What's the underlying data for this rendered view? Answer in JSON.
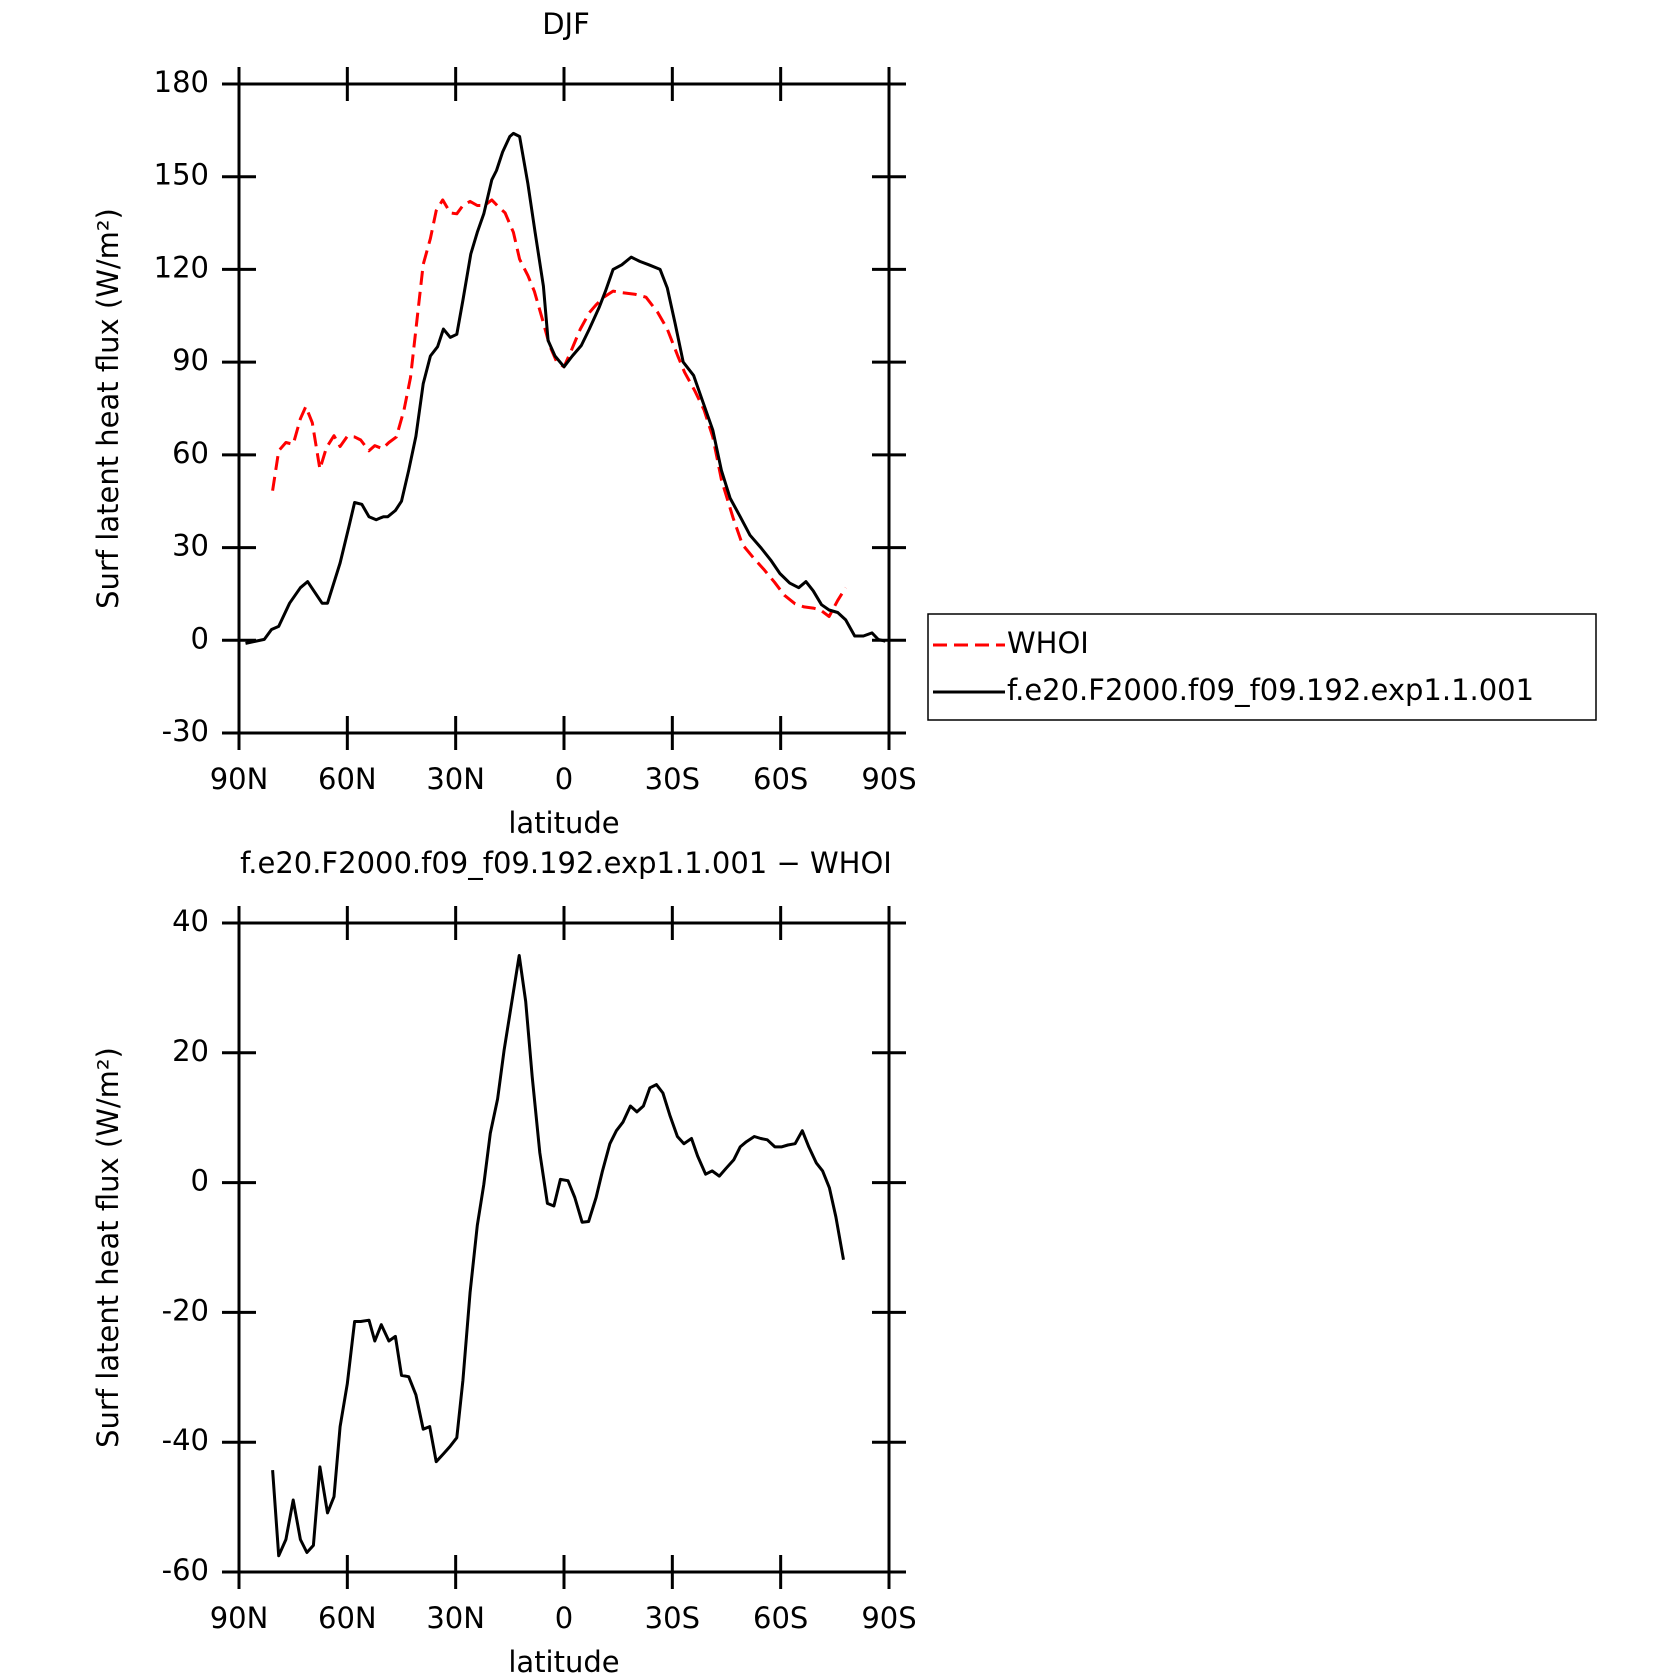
{
  "chart_data": [
    {
      "type": "line",
      "title": "DJF",
      "xlabel": "latitude",
      "ylabel": "Surf latent heat flux (W/m²)",
      "xlim": [
        90,
        -90
      ],
      "xticks": [
        {
          "value": 90,
          "label": "90N"
        },
        {
          "value": 60,
          "label": "60N"
        },
        {
          "value": 30,
          "label": "30N"
        },
        0,
        {
          "value": -30,
          "label": "30S"
        },
        {
          "value": -60,
          "label": "60S"
        },
        {
          "value": -90,
          "label": "90S"
        }
      ],
      "ylim": [
        -30,
        180
      ],
      "yticks": [
        -30,
        0,
        30,
        60,
        90,
        120,
        150,
        180
      ],
      "legend": "right",
      "series": [
        {
          "name": "WHOI",
          "color": "#ff0000",
          "linestyle": "dashed",
          "x": [
            80.7,
            79,
            77,
            75,
            73,
            71.5,
            69.7,
            67.6,
            65.8,
            63.7,
            62,
            60,
            58,
            56.3,
            54,
            52.4,
            50.3,
            48.5,
            46.4,
            44.3,
            42.5,
            39,
            37,
            35.4,
            33.6,
            31.5,
            29.7,
            28,
            26,
            24,
            22,
            20,
            18.5,
            16.3,
            14,
            12.3,
            10,
            8.2,
            6,
            4,
            2,
            0,
            -2,
            -4.5,
            -7,
            -9,
            -11,
            -13.6,
            -16,
            -19.6,
            -22.7,
            -26,
            -28.6,
            -31.5,
            -33.4,
            -36.2,
            -38.8,
            -41.2,
            -43.6,
            -46.8,
            -49.4,
            -52.6,
            -55.3,
            -58.3,
            -61,
            -64,
            -66.5,
            -69,
            -71,
            -73.4,
            -75.8,
            -78
          ],
          "values": [
            48.4,
            61.3,
            64,
            63.4,
            71.7,
            75.6,
            70.4,
            55.4,
            62.3,
            66.2,
            62.7,
            66,
            65.8,
            64.8,
            61.3,
            63,
            62,
            64,
            65.8,
            74.5,
            85,
            121.6,
            130,
            139,
            142.5,
            138.3,
            138,
            140.7,
            142,
            140.7,
            140.7,
            142.5,
            140.7,
            138.3,
            132,
            123.3,
            118,
            112.9,
            104,
            95.4,
            90,
            88.5,
            93.7,
            100.7,
            106,
            108.7,
            111,
            113,
            112.5,
            112,
            111,
            106,
            100.7,
            92,
            86.7,
            80.8,
            74.5,
            65.8,
            52,
            39.7,
            31,
            26.5,
            23,
            18.8,
            14.6,
            11.8,
            10.8,
            10.4,
            9.8,
            7.7,
            12.9,
            17
          ]
        },
        {
          "name": "f.e20.F2000.f09_f09.192.exp1.1.001",
          "color": "#000000",
          "linestyle": "solid",
          "x": [
            88.2,
            83,
            81,
            79,
            76,
            73,
            71,
            67,
            65.5,
            62,
            59.5,
            58,
            56,
            54,
            52,
            50,
            48.8,
            46.7,
            45,
            43,
            41,
            39,
            37,
            35,
            33.4,
            31.5,
            29.7,
            28,
            25.8,
            24,
            22.2,
            20,
            18.7,
            17,
            15,
            14,
            12.3,
            10,
            8,
            5.7,
            4.4,
            2.5,
            0,
            -2.3,
            -4.8,
            -7,
            -9.7,
            -11.5,
            -13.6,
            -16,
            -18.6,
            -21,
            -23.5,
            -26.6,
            -28.6,
            -30.8,
            -33,
            -35.9,
            -38.5,
            -41.2,
            -43.6,
            -46,
            -48.8,
            -51.5,
            -54.5,
            -57.2,
            -59.8,
            -62.5,
            -65,
            -67,
            -69,
            -71.3,
            -73.4,
            -75.8,
            -78,
            -80.5,
            -82.9,
            -85.3,
            -87,
            -89
          ],
          "values": [
            -1,
            0.3,
            3.5,
            4.5,
            12,
            17,
            19,
            12,
            12,
            25,
            37,
            44.6,
            44,
            40,
            39,
            40,
            40,
            42,
            45,
            55,
            66,
            83,
            92,
            95,
            100.7,
            98,
            99,
            110,
            125,
            132,
            138,
            149,
            152,
            158,
            163,
            164,
            163,
            147.7,
            132,
            114.6,
            97,
            92,
            88.5,
            92,
            95.4,
            100.7,
            107.6,
            113,
            120,
            121.5,
            124,
            122.6,
            121.5,
            120,
            114,
            102.4,
            90,
            85.7,
            77,
            68,
            55,
            46,
            40,
            34,
            30,
            26,
            21.6,
            18.5,
            17,
            19,
            16,
            11.5,
            9.8,
            9,
            6.6,
            1.4,
            1.4,
            2.4,
            0.3,
            -0.3
          ]
        }
      ]
    },
    {
      "type": "line",
      "title": "f.e20.F2000.f09_f09.192.exp1.1.001 − WHOI",
      "xlabel": "latitude",
      "ylabel": "Surf latent heat flux (W/m²)",
      "xlim": [
        90,
        -90
      ],
      "xticks": [
        {
          "value": 90,
          "label": "90N"
        },
        {
          "value": 60,
          "label": "60N"
        },
        {
          "value": 30,
          "label": "30N"
        },
        0,
        {
          "value": -30,
          "label": "30S"
        },
        {
          "value": -60,
          "label": "60S"
        },
        {
          "value": -90,
          "label": "90S"
        }
      ],
      "ylim": [
        -60,
        40
      ],
      "yticks": [
        -60,
        -40,
        -20,
        0,
        20,
        40
      ],
      "series": [
        {
          "color": "#000000",
          "linestyle": "solid",
          "x": [
            80.7,
            79,
            77,
            75,
            73,
            71.2,
            69.4,
            67.6,
            65.5,
            63.7,
            62,
            60,
            58,
            56.3,
            54,
            52.4,
            50.6,
            48.5,
            46.7,
            45,
            43,
            41,
            39,
            37.2,
            35.4,
            33.4,
            31.5,
            29.7,
            28,
            26,
            24,
            22.2,
            20.4,
            18.4,
            16.6,
            14.2,
            12.4,
            10.6,
            8.8,
            6.7,
            4.6,
            2.8,
            1,
            -1.1,
            -3,
            -5,
            -6.8,
            -8.9,
            -10.6,
            -12.7,
            -14.5,
            -16.3,
            -18.4,
            -20.2,
            -22,
            -23.8,
            -25.6,
            -27.4,
            -29.3,
            -31.4,
            -33.2,
            -35.3,
            -37,
            -39.2,
            -41,
            -43,
            -44.9,
            -47,
            -48.8,
            -50.5,
            -52.7,
            -54.5,
            -56.3,
            -58.4,
            -60.2,
            -62,
            -64,
            -66,
            -67.8,
            -69.9,
            -71.6,
            -73.5,
            -75.3,
            -77.4
          ],
          "values": [
            -44.3,
            -57.5,
            -55,
            -48.9,
            -55,
            -57,
            -55.9,
            -43.8,
            -50.9,
            -48.4,
            -37.6,
            -31,
            -21.4,
            -21.4,
            -21.2,
            -24.4,
            -21.9,
            -24.4,
            -23.7,
            -29.7,
            -29.9,
            -32.7,
            -38,
            -37.6,
            -43,
            -41.8,
            -40.6,
            -39.3,
            -30.5,
            -16.9,
            -6.6,
            -0.3,
            7.6,
            12.9,
            20.4,
            28.7,
            35,
            27.9,
            16.3,
            4.6,
            -3.2,
            -3.6,
            0.5,
            0.3,
            -2.3,
            -6.1,
            -6,
            -2.3,
            1.7,
            6,
            8,
            9.3,
            11.8,
            10.9,
            11.8,
            14.6,
            15.1,
            13.8,
            10.4,
            7.1,
            6,
            6.8,
            4.1,
            1.3,
            1.8,
            1,
            2.2,
            3.5,
            5.5,
            6.3,
            7.1,
            6.8,
            6.6,
            5.5,
            5.5,
            5.8,
            6,
            8,
            5.5,
            3,
            1.8,
            -0.8,
            -5.3,
            -11.9
          ]
        }
      ]
    }
  ]
}
